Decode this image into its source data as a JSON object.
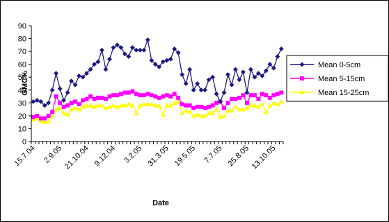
{
  "chart_data": {
    "type": "line",
    "xlabel": "Date",
    "ylabel": "GMC%",
    "ylim": [
      0,
      90
    ],
    "yticks": [
      0,
      10,
      20,
      30,
      40,
      50,
      60,
      70,
      80,
      90
    ],
    "grid": false,
    "legend_position": "right",
    "x_tick_labels": [
      "15.7.04",
      "2.9.05",
      "21.10.04",
      "9.12.04",
      "3.2.05",
      "31.3.05",
      "19.5.05",
      "7.7.05",
      "25.8.05",
      "13.10.05"
    ],
    "x_tick_positions": [
      0,
      7,
      14,
      21,
      28,
      35,
      42,
      49,
      56,
      63
    ],
    "series": [
      {
        "name": "Mean 0-5cm",
        "color": "#1a1a80",
        "marker": "diamond",
        "values": [
          31,
          32,
          31,
          28,
          30,
          40,
          53,
          41,
          32,
          38,
          47,
          44,
          51,
          50,
          53,
          56,
          60,
          62,
          71,
          56,
          64,
          73,
          75,
          73,
          68,
          66,
          73,
          71,
          71,
          71,
          79,
          63,
          60,
          58,
          62,
          63,
          64,
          72,
          69,
          52,
          45,
          56,
          40,
          45,
          40,
          40,
          48,
          50,
          37,
          31,
          38,
          52,
          44,
          56,
          48,
          54,
          38,
          56,
          50,
          53,
          51,
          55,
          60,
          57,
          66,
          72
        ]
      },
      {
        "name": "Mean 5-15cm",
        "color": "#ff00ff",
        "marker": "square",
        "values": [
          19,
          20,
          18,
          18,
          20,
          23,
          35,
          30,
          27,
          28,
          30,
          31,
          29,
          32,
          33,
          35,
          33,
          34,
          34,
          33,
          35,
          36,
          36,
          37,
          38,
          38,
          39,
          37,
          36,
          36,
          37,
          36,
          35,
          34,
          35,
          36,
          35,
          37,
          34,
          29,
          28,
          28,
          26,
          27,
          27,
          26,
          27,
          28,
          30,
          31,
          26,
          30,
          33,
          33,
          34,
          36,
          30,
          36,
          36,
          33,
          37,
          36,
          34,
          36,
          37,
          38
        ]
      },
      {
        "name": "Mean 15-25cm",
        "color": "#ffff00",
        "marker": "triangle",
        "values": [
          17,
          18,
          16,
          15,
          16,
          20,
          25,
          26,
          22,
          21,
          25,
          26,
          25,
          27,
          28,
          28,
          27,
          28,
          28,
          26,
          27,
          28,
          27,
          28,
          28,
          29,
          28,
          22,
          28,
          29,
          29,
          29,
          28,
          28,
          21,
          28,
          28,
          30,
          31,
          22,
          24,
          23,
          20,
          21,
          20,
          20,
          22,
          22,
          25,
          19,
          20,
          24,
          24,
          27,
          25,
          25,
          26,
          28,
          28,
          27,
          29,
          23,
          28,
          30,
          29,
          31
        ]
      }
    ]
  }
}
